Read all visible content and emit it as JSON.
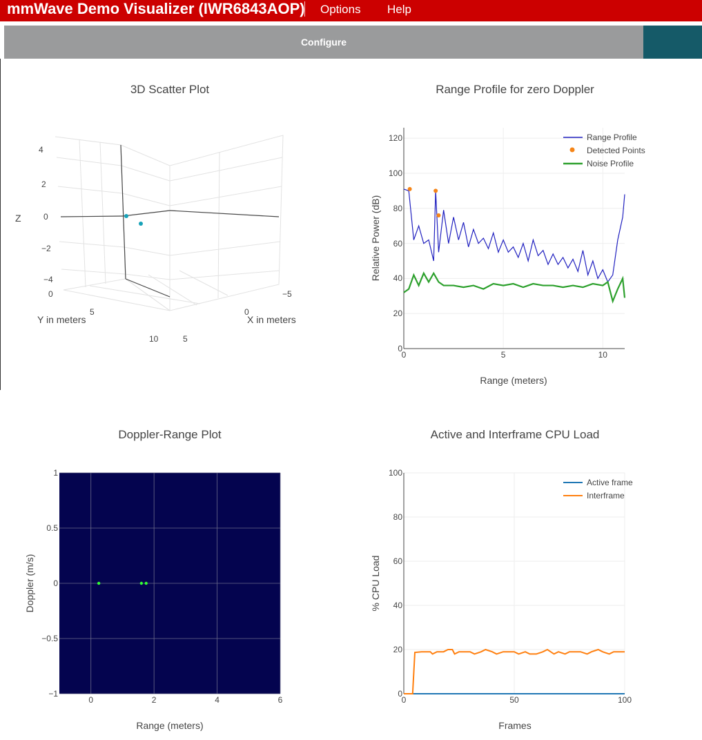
{
  "app": {
    "title": "mmWave Demo Visualizer (IWR6843AOP)",
    "menu": [
      {
        "label": "Options"
      },
      {
        "label": "Help"
      }
    ],
    "configure_label": "Configure"
  },
  "colors": {
    "header_red": "#cc0000",
    "config_gray": "#9a9b9c",
    "teal": "#155a68",
    "range_profile": "#1f1fbf",
    "detected_points": "#f58518",
    "noise_profile": "#2ca02c",
    "active_frame": "#1f77b4",
    "interframe": "#ff7f0e",
    "heatmap_bg": "#04044f",
    "doppler_points": "#33ff33",
    "scatter_points": "#17a2b8"
  },
  "chart_data": [
    {
      "type": "scatter3d",
      "title": "3D Scatter Plot",
      "xlabel": "X in meters",
      "ylabel": "Y in meters",
      "zlabel": "Z",
      "z_ticks": [
        "4",
        "2",
        "0",
        "−2",
        "−4"
      ],
      "y_ticks": [
        "0",
        "5",
        "10"
      ],
      "x_ticks": [
        "−5",
        "0",
        "5"
      ],
      "points": [
        {
          "x": 0.1,
          "y": 0.3,
          "z": 0.4
        },
        {
          "x": 0.2,
          "y": 1.6,
          "z": -0.3
        }
      ]
    },
    {
      "type": "line",
      "title": "Range Profile for zero Doppler",
      "xlabel": "Range (meters)",
      "ylabel": "Relative Power (dB)",
      "xlim": [
        0,
        11.1
      ],
      "ylim": [
        0,
        126
      ],
      "x_ticks": [
        "0",
        "5",
        "10"
      ],
      "y_ticks": [
        "0",
        "20",
        "40",
        "60",
        "80",
        "100",
        "120"
      ],
      "grid": true,
      "legend_position": "top-right",
      "series": [
        {
          "name": "Range Profile",
          "kind": "line",
          "x": [
            0,
            0.25,
            0.5,
            0.75,
            1.0,
            1.25,
            1.5,
            1.6,
            1.75,
            2.0,
            2.25,
            2.5,
            2.75,
            3.0,
            3.25,
            3.5,
            3.75,
            4.0,
            4.25,
            4.5,
            4.75,
            5.0,
            5.25,
            5.5,
            5.75,
            6.0,
            6.25,
            6.5,
            6.75,
            7.0,
            7.25,
            7.5,
            7.75,
            8.0,
            8.25,
            8.5,
            8.75,
            9.0,
            9.25,
            9.5,
            9.75,
            10.0,
            10.25,
            10.5,
            10.75,
            11.0,
            11.1
          ],
          "y": [
            91,
            90,
            62,
            70,
            60,
            62,
            50,
            90,
            55,
            79,
            60,
            75,
            62,
            72,
            58,
            68,
            60,
            63,
            57,
            66,
            55,
            62,
            55,
            58,
            52,
            60,
            50,
            62,
            53,
            56,
            48,
            54,
            48,
            52,
            46,
            51,
            44,
            56,
            42,
            50,
            40,
            45,
            38,
            42,
            62,
            75,
            88
          ]
        },
        {
          "name": "Detected Points",
          "kind": "markers",
          "x": [
            0.3,
            1.6,
            1.75
          ],
          "y": [
            91,
            90,
            76
          ]
        },
        {
          "name": "Noise Profile",
          "kind": "line",
          "x": [
            0,
            0.25,
            0.5,
            0.75,
            1.0,
            1.25,
            1.5,
            1.75,
            2.0,
            2.5,
            3.0,
            3.5,
            4.0,
            4.5,
            5.0,
            5.5,
            6.0,
            6.5,
            7.0,
            7.5,
            8.0,
            8.5,
            9.0,
            9.5,
            10.0,
            10.25,
            10.5,
            10.75,
            11.0,
            11.1
          ],
          "y": [
            32,
            34,
            42,
            36,
            43,
            38,
            43,
            38,
            36,
            36,
            35,
            36,
            34,
            37,
            36,
            37,
            35,
            37,
            36,
            36,
            35,
            36,
            35,
            37,
            36,
            38,
            27,
            34,
            40,
            29
          ]
        }
      ]
    },
    {
      "type": "heatmap",
      "title": "Doppler-Range Plot",
      "xlabel": "Range (meters)",
      "ylabel": "Doppler (m/s)",
      "xlim": [
        -1,
        6
      ],
      "ylim": [
        -1,
        1
      ],
      "x_ticks": [
        "0",
        "2",
        "4",
        "6"
      ],
      "y_ticks": [
        "1",
        "0.5",
        "0",
        "−0.5",
        "−1"
      ],
      "grid": true,
      "points": {
        "x": [
          0.25,
          1.6,
          1.75
        ],
        "y": [
          0,
          0,
          0
        ]
      }
    },
    {
      "type": "line",
      "title": "Active and Interframe  CPU Load",
      "xlabel": "Frames",
      "ylabel": "% CPU Load",
      "xlim": [
        0,
        100
      ],
      "ylim": [
        0,
        100
      ],
      "x_ticks": [
        "0",
        "50",
        "100"
      ],
      "y_ticks": [
        "0",
        "20",
        "40",
        "60",
        "80",
        "100"
      ],
      "grid": true,
      "legend_position": "top-right",
      "series": [
        {
          "name": "Active frame",
          "x": [
            0,
            100
          ],
          "y": [
            0,
            0
          ]
        },
        {
          "name": "Interframe",
          "x": [
            0,
            4,
            5,
            8,
            12,
            13,
            15,
            18,
            20,
            22,
            23,
            25,
            28,
            30,
            32,
            35,
            37,
            40,
            42,
            45,
            48,
            50,
            52,
            55,
            57,
            60,
            63,
            65,
            68,
            70,
            73,
            75,
            78,
            80,
            83,
            85,
            88,
            90,
            93,
            95,
            98,
            100
          ],
          "y": [
            0,
            0,
            18.7,
            19,
            19,
            18,
            19,
            19,
            20,
            20,
            18,
            19,
            19,
            19,
            18,
            19,
            20,
            19,
            18,
            19,
            19,
            19,
            18,
            19,
            18,
            18,
            19,
            20,
            18,
            19,
            18,
            19,
            19,
            19,
            18,
            19,
            20,
            19,
            18,
            19,
            19,
            19
          ]
        }
      ]
    }
  ]
}
